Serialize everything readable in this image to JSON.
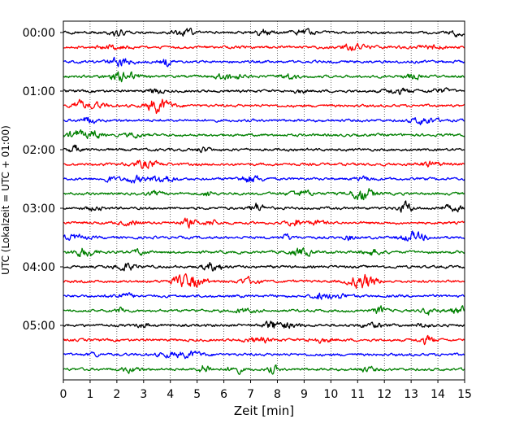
{
  "chart_data": {
    "type": "line",
    "title": "",
    "xlabel": "Zeit  [min]",
    "ylabel": "UTC (Lokalzeit = UTC + 01:00)",
    "xlim": [
      0,
      15
    ],
    "x_ticks": [
      0,
      1,
      2,
      3,
      4,
      5,
      6,
      7,
      8,
      9,
      10,
      11,
      12,
      13,
      14,
      15
    ],
    "x_tick_labels": [
      "0",
      "1",
      "2",
      "3",
      "4",
      "5",
      "6",
      "7",
      "8",
      "9",
      "10",
      "11",
      "12",
      "13",
      "14",
      "15"
    ],
    "y_tick_labels": [
      "00:00",
      "01:00",
      "02:00",
      "03:00",
      "04:00",
      "05:00"
    ],
    "grid": "vertical dotted",
    "trace_interval_minutes": 15,
    "trace_count": 24,
    "trace_colors": [
      "#000000",
      "#ff0000",
      "#0000ff",
      "#008000"
    ],
    "traces": [
      {
        "start": "00:00",
        "color": "#000000"
      },
      {
        "start": "00:15",
        "color": "#ff0000"
      },
      {
        "start": "00:30",
        "color": "#0000ff"
      },
      {
        "start": "00:45",
        "color": "#008000"
      },
      {
        "start": "01:00",
        "color": "#000000"
      },
      {
        "start": "01:15",
        "color": "#ff0000"
      },
      {
        "start": "01:30",
        "color": "#0000ff"
      },
      {
        "start": "01:45",
        "color": "#008000"
      },
      {
        "start": "02:00",
        "color": "#000000"
      },
      {
        "start": "02:15",
        "color": "#ff0000"
      },
      {
        "start": "02:30",
        "color": "#0000ff"
      },
      {
        "start": "02:45",
        "color": "#008000"
      },
      {
        "start": "03:00",
        "color": "#000000"
      },
      {
        "start": "03:15",
        "color": "#ff0000"
      },
      {
        "start": "03:30",
        "color": "#0000ff"
      },
      {
        "start": "03:45",
        "color": "#008000"
      },
      {
        "start": "04:00",
        "color": "#000000"
      },
      {
        "start": "04:15",
        "color": "#ff0000"
      },
      {
        "start": "04:30",
        "color": "#0000ff"
      },
      {
        "start": "04:45",
        "color": "#008000"
      },
      {
        "start": "05:00",
        "color": "#000000"
      },
      {
        "start": "05:15",
        "color": "#ff0000"
      },
      {
        "start": "05:30",
        "color": "#0000ff"
      },
      {
        "start": "05:45",
        "color": "#008000"
      }
    ]
  }
}
